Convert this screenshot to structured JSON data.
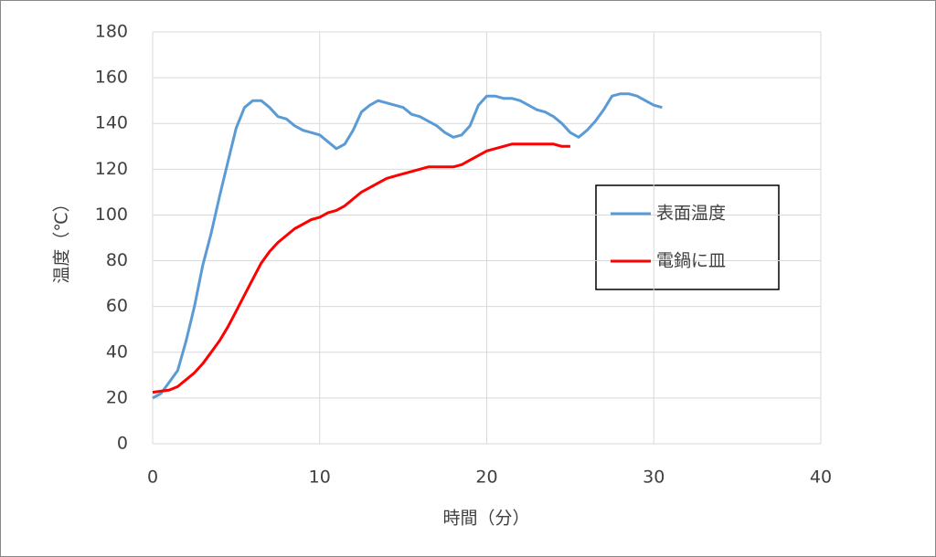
{
  "chart_data": {
    "type": "line",
    "xlabel": "時間（分）",
    "ylabel": "温度（℃）",
    "xlim": [
      0,
      40
    ],
    "xticks": [
      0,
      10,
      20,
      30,
      40
    ],
    "ylim": [
      0,
      180
    ],
    "yticks": [
      0,
      20,
      40,
      60,
      80,
      100,
      120,
      140,
      160,
      180
    ],
    "grid": true,
    "legend": "right",
    "series": [
      {
        "name": "表面温度",
        "color": "#5b9bd5",
        "x": [
          0,
          0.5,
          1,
          1.5,
          2,
          2.5,
          3,
          3.5,
          4,
          4.5,
          5,
          5.5,
          6,
          6.5,
          7,
          7.5,
          8,
          8.5,
          9,
          9.5,
          10,
          10.5,
          11,
          11.5,
          12,
          12.5,
          13,
          13.5,
          14,
          14.5,
          15,
          15.5,
          16,
          16.5,
          17,
          17.5,
          18,
          18.5,
          19,
          19.5,
          20,
          20.5,
          21,
          21.5,
          22,
          22.5,
          23,
          23.5,
          24,
          24.5,
          25,
          25.5,
          26,
          26.5,
          27,
          27.5,
          28,
          28.5,
          29,
          29.5,
          30,
          30.5
        ],
        "values": [
          20,
          22,
          27,
          32,
          45,
          60,
          78,
          92,
          108,
          123,
          138,
          147,
          150,
          150,
          147,
          143,
          142,
          139,
          137,
          136,
          135,
          132,
          129,
          131,
          137,
          145,
          148,
          150,
          149,
          148,
          147,
          144,
          143,
          141,
          139,
          136,
          134,
          135,
          139,
          148,
          152,
          152,
          151,
          151,
          150,
          148,
          146,
          145,
          143,
          140,
          136,
          134,
          137,
          141,
          146,
          152,
          153,
          153,
          152,
          150,
          148,
          147
        ]
      },
      {
        "name": "電鍋に皿",
        "color": "#ff0000",
        "x": [
          0,
          0.5,
          1,
          1.5,
          2,
          2.5,
          3,
          3.5,
          4,
          4.5,
          5,
          5.5,
          6,
          6.5,
          7,
          7.5,
          8,
          8.5,
          9,
          9.5,
          10,
          10.5,
          11,
          11.5,
          12,
          12.5,
          13,
          13.5,
          14,
          14.5,
          15,
          15.5,
          16,
          16.5,
          17,
          17.5,
          18,
          18.5,
          19,
          19.5,
          20,
          20.5,
          21,
          21.5,
          22,
          22.5,
          23,
          23.5,
          24,
          24.5,
          25
        ],
        "values": [
          22.5,
          23,
          23.5,
          25,
          28,
          31,
          35,
          40,
          45,
          51,
          58,
          65,
          72,
          79,
          84,
          88,
          91,
          94,
          96,
          98,
          99,
          101,
          102,
          104,
          107,
          110,
          112,
          114,
          116,
          117,
          118,
          119,
          120,
          121,
          121,
          121,
          121,
          122,
          124,
          126,
          128,
          129,
          130,
          131,
          131,
          131,
          131,
          131,
          131,
          130,
          130
        ]
      }
    ]
  }
}
